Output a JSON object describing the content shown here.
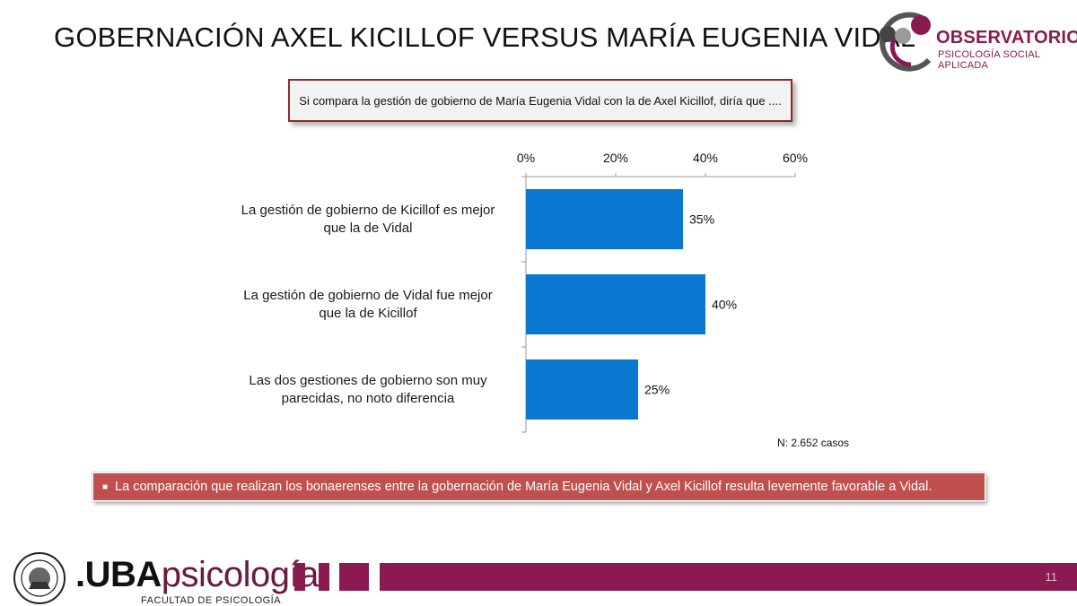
{
  "page": {
    "title": "GOBERNACIÓN AXEL KICILLOF VERSUS MARÍA EUGENIA VIDAL",
    "question": "Si compara la gestión de gobierno de María Eugenia Vidal con la de Axel Kicillof, diría que ....",
    "sample_note": "N: 2.652 casos",
    "conclusion": "La comparación que realizan los bonaerenses entre la gobernación de María Eugenia Vidal y Axel Kicillof resulta levemente favorable a Vidal.",
    "page_number": "11"
  },
  "branding": {
    "observatorio_name": "OBSERVATORIO",
    "observatorio_sub": "PSICOLOGÍA SOCIAL APLICADA",
    "uba_bold": ".UBA",
    "uba_rest": "psicología",
    "faculty": "FACULTAD DE PSICOLOGÍA"
  },
  "colors": {
    "bar": "#0a77d0",
    "accent": "#8b1a52",
    "conclusion_bg": "#c0504d"
  },
  "chart_data": {
    "type": "bar",
    "orientation": "horizontal",
    "categories": [
      [
        "La gestión de gobierno de Kicillof es mejor",
        "que la de Vidal"
      ],
      [
        "La gestión de gobierno de Vidal fue mejor",
        "que la de Kicillof"
      ],
      [
        "Las dos gestiones de gobierno son muy",
        "parecidas, no noto diferencia"
      ]
    ],
    "values": [
      35,
      40,
      25
    ],
    "value_labels": [
      "35%",
      "40%",
      "25%"
    ],
    "xlim": [
      0,
      60
    ],
    "xticks": [
      0,
      20,
      40,
      60
    ],
    "xtick_labels": [
      "0%",
      "20%",
      "40%",
      "60%"
    ],
    "axis_position": "top",
    "grid": false,
    "legend": "none"
  }
}
